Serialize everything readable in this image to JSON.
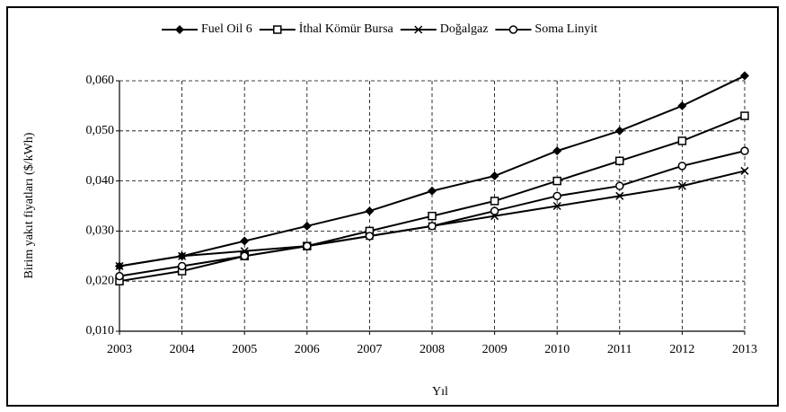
{
  "chart_data": {
    "type": "line",
    "xlabel": "Yıl",
    "ylabel": "Birim yakıt fiyatları ($/kWh)",
    "categories": [
      "2003",
      "2004",
      "2005",
      "2006",
      "2007",
      "2008",
      "2009",
      "2010",
      "2011",
      "2012",
      "2013"
    ],
    "series": [
      {
        "name": "Fuel Oil 6",
        "color": "#000000",
        "marker": "diamond",
        "values": [
          0.023,
          0.025,
          0.028,
          0.031,
          0.034,
          0.038,
          0.041,
          0.046,
          0.05,
          0.055,
          0.061
        ]
      },
      {
        "name": "İthal Kömür Bursa",
        "color": "#000000",
        "marker": "square",
        "values": [
          0.02,
          0.022,
          0.025,
          0.027,
          0.03,
          0.033,
          0.036,
          0.04,
          0.044,
          0.048,
          0.053
        ]
      },
      {
        "name": "Doğalgaz",
        "color": "#000000",
        "marker": "x",
        "values": [
          0.023,
          0.025,
          0.026,
          0.027,
          0.029,
          0.031,
          0.033,
          0.035,
          0.037,
          0.039,
          0.042
        ]
      },
      {
        "name": "Soma Linyit",
        "color": "#000000",
        "marker": "circle",
        "values": [
          0.021,
          0.023,
          0.025,
          0.027,
          0.029,
          0.031,
          0.034,
          0.037,
          0.039,
          0.043,
          0.046
        ]
      }
    ],
    "ylim": [
      0.01,
      0.06
    ],
    "yticks": [
      {
        "value": 0.01,
        "label": "0,010"
      },
      {
        "value": 0.02,
        "label": "0,020"
      },
      {
        "value": 0.03,
        "label": "0,030"
      },
      {
        "value": 0.04,
        "label": "0,040"
      },
      {
        "value": 0.05,
        "label": "0,050"
      },
      {
        "value": 0.06,
        "label": "0,060"
      }
    ],
    "grid": true,
    "legend": "top"
  }
}
